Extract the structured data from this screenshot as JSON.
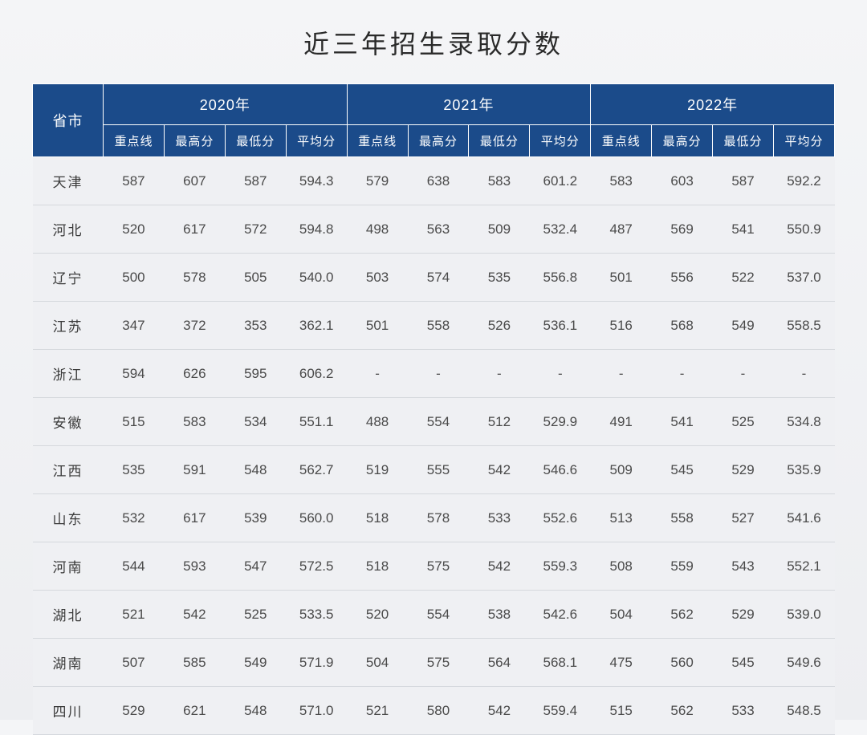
{
  "title": "近三年招生录取分数",
  "table": {
    "province_header": "省市",
    "years": [
      "2020年",
      "2021年",
      "2022年"
    ],
    "sub_headers": [
      "重点线",
      "最高分",
      "最低分",
      "平均分"
    ],
    "rows": [
      {
        "province": "天津",
        "cells": [
          "587",
          "607",
          "587",
          "594.3",
          "579",
          "638",
          "583",
          "601.2",
          "583",
          "603",
          "587",
          "592.2"
        ]
      },
      {
        "province": "河北",
        "cells": [
          "520",
          "617",
          "572",
          "594.8",
          "498",
          "563",
          "509",
          "532.4",
          "487",
          "569",
          "541",
          "550.9"
        ]
      },
      {
        "province": "辽宁",
        "cells": [
          "500",
          "578",
          "505",
          "540.0",
          "503",
          "574",
          "535",
          "556.8",
          "501",
          "556",
          "522",
          "537.0"
        ]
      },
      {
        "province": "江苏",
        "cells": [
          "347",
          "372",
          "353",
          "362.1",
          "501",
          "558",
          "526",
          "536.1",
          "516",
          "568",
          "549",
          "558.5"
        ]
      },
      {
        "province": "浙江",
        "cells": [
          "594",
          "626",
          "595",
          "606.2",
          "-",
          "-",
          "-",
          "-",
          "-",
          "-",
          "-",
          "-"
        ]
      },
      {
        "province": "安徽",
        "cells": [
          "515",
          "583",
          "534",
          "551.1",
          "488",
          "554",
          "512",
          "529.9",
          "491",
          "541",
          "525",
          "534.8"
        ]
      },
      {
        "province": "江西",
        "cells": [
          "535",
          "591",
          "548",
          "562.7",
          "519",
          "555",
          "542",
          "546.6",
          "509",
          "545",
          "529",
          "535.9"
        ]
      },
      {
        "province": "山东",
        "cells": [
          "532",
          "617",
          "539",
          "560.0",
          "518",
          "578",
          "533",
          "552.6",
          "513",
          "558",
          "527",
          "541.6"
        ]
      },
      {
        "province": "河南",
        "cells": [
          "544",
          "593",
          "547",
          "572.5",
          "518",
          "575",
          "542",
          "559.3",
          "508",
          "559",
          "543",
          "552.1"
        ]
      },
      {
        "province": "湖北",
        "cells": [
          "521",
          "542",
          "525",
          "533.5",
          "520",
          "554",
          "538",
          "542.6",
          "504",
          "562",
          "529",
          "539.0"
        ]
      },
      {
        "province": "湖南",
        "cells": [
          "507",
          "585",
          "549",
          "571.9",
          "504",
          "575",
          "564",
          "568.1",
          "475",
          "560",
          "545",
          "549.6"
        ]
      },
      {
        "province": "四川",
        "cells": [
          "529",
          "621",
          "548",
          "571.0",
          "521",
          "580",
          "542",
          "559.4",
          "515",
          "562",
          "533",
          "548.5"
        ]
      }
    ]
  },
  "style": {
    "header_bg": "#1b4b8a",
    "header_text": "#ffffff",
    "body_bg": "#eff0f3",
    "body_text": "#4a4a4a",
    "border_color": "#d5d8dd",
    "title_color": "#2a2a2a",
    "title_fontsize": 32,
    "header_fontsize": 17,
    "cell_fontsize": 17
  }
}
